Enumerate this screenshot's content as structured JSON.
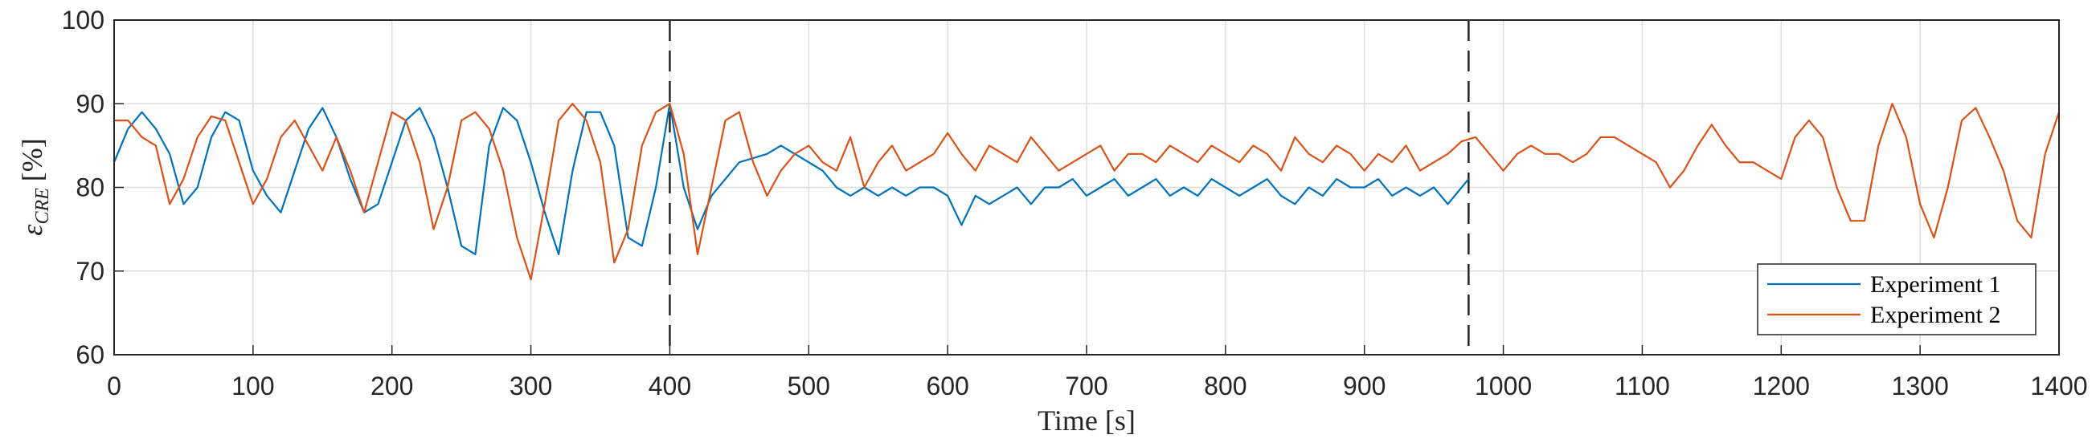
{
  "chart_data": {
    "type": "line",
    "xlabel": "Time [s]",
    "ylabel": {
      "symbol": "ε",
      "subscript": "CRE",
      "unit": "[%]"
    },
    "xlim": [
      0,
      1400
    ],
    "xticks": [
      0,
      100,
      200,
      300,
      400,
      500,
      600,
      700,
      800,
      900,
      1000,
      1100,
      1200,
      1300,
      1400
    ],
    "ylim": [
      60,
      100
    ],
    "yticks": [
      60,
      70,
      80,
      90,
      100
    ],
    "grid": true,
    "legend": "lower right",
    "vlines": [
      400,
      975
    ],
    "series": [
      {
        "name": "Experiment 1",
        "color": "#0072BD",
        "x": [
          0,
          10,
          20,
          30,
          40,
          50,
          60,
          70,
          80,
          90,
          100,
          110,
          120,
          130,
          140,
          150,
          160,
          170,
          180,
          190,
          200,
          210,
          220,
          230,
          240,
          250,
          260,
          270,
          280,
          290,
          300,
          310,
          320,
          330,
          340,
          350,
          360,
          370,
          380,
          390,
          400,
          410,
          420,
          430,
          440,
          450,
          460,
          470,
          480,
          490,
          500,
          510,
          520,
          530,
          540,
          550,
          560,
          570,
          580,
          590,
          600,
          610,
          620,
          630,
          640,
          650,
          660,
          670,
          680,
          690,
          700,
          710,
          720,
          730,
          740,
          750,
          760,
          770,
          780,
          790,
          800,
          810,
          820,
          830,
          840,
          850,
          860,
          870,
          880,
          890,
          900,
          910,
          920,
          930,
          940,
          950,
          960,
          970,
          975
        ],
        "values": [
          83,
          87,
          89,
          87,
          84,
          78,
          80,
          86,
          89,
          88,
          82,
          79,
          77,
          82,
          87,
          89.5,
          86,
          81,
          77,
          78,
          83,
          88,
          89.5,
          86,
          80,
          73,
          72,
          85,
          89.5,
          88,
          83,
          77,
          72,
          82,
          89,
          89,
          85,
          74,
          73,
          80,
          90,
          80,
          75,
          79,
          81,
          83,
          83.5,
          84,
          85,
          84,
          83,
          82,
          80,
          79,
          80,
          79,
          80,
          79,
          80,
          80,
          79,
          75.5,
          79,
          78,
          79,
          80,
          78,
          80,
          80,
          81,
          79,
          80,
          81,
          79,
          80,
          81,
          79,
          80,
          79,
          81,
          80,
          79,
          80,
          81,
          79,
          78,
          80,
          79,
          81,
          80,
          80,
          81,
          79,
          80,
          79,
          80,
          78,
          80,
          81
        ]
      },
      {
        "name": "Experiment 2",
        "color": "#D95319",
        "x": [
          0,
          10,
          20,
          30,
          40,
          50,
          60,
          70,
          80,
          90,
          100,
          110,
          120,
          130,
          140,
          150,
          160,
          170,
          180,
          190,
          200,
          210,
          220,
          230,
          240,
          250,
          260,
          270,
          280,
          290,
          300,
          310,
          320,
          330,
          340,
          350,
          360,
          370,
          380,
          390,
          400,
          410,
          420,
          430,
          440,
          450,
          460,
          470,
          480,
          490,
          500,
          510,
          520,
          530,
          540,
          550,
          560,
          570,
          580,
          590,
          600,
          610,
          620,
          630,
          640,
          650,
          660,
          670,
          680,
          690,
          700,
          710,
          720,
          730,
          740,
          750,
          760,
          770,
          780,
          790,
          800,
          810,
          820,
          830,
          840,
          850,
          860,
          870,
          880,
          890,
          900,
          910,
          920,
          930,
          940,
          950,
          960,
          970,
          980,
          990,
          1000,
          1010,
          1020,
          1030,
          1040,
          1050,
          1060,
          1070,
          1080,
          1090,
          1100,
          1110,
          1120,
          1130,
          1140,
          1150,
          1160,
          1170,
          1180,
          1190,
          1200,
          1210,
          1220,
          1230,
          1240,
          1250,
          1260,
          1270,
          1280,
          1290,
          1300,
          1310,
          1320,
          1330,
          1340,
          1350,
          1360,
          1370,
          1380,
          1390,
          1400
        ],
        "values": [
          88,
          88,
          86,
          85,
          78,
          81,
          86,
          88.5,
          88,
          83,
          78,
          81,
          86,
          88,
          85,
          82,
          86,
          82,
          77,
          83,
          89,
          88,
          83,
          75,
          80,
          88,
          89,
          87,
          82,
          74,
          69,
          78,
          88,
          90,
          88,
          83,
          71,
          75,
          85,
          89,
          90,
          84,
          72,
          80,
          88,
          89,
          83,
          79,
          82,
          84,
          85,
          83,
          82,
          86,
          80,
          83,
          85,
          82,
          83,
          84,
          86.5,
          84,
          82,
          85,
          84,
          83,
          86,
          84,
          82,
          83,
          84,
          85,
          82,
          84,
          84,
          83,
          85,
          84,
          83,
          85,
          84,
          83,
          85,
          84,
          82,
          86,
          84,
          83,
          85,
          84,
          82,
          84,
          83,
          85,
          82,
          83,
          84,
          85.5,
          86,
          84,
          82,
          84,
          85,
          84,
          84,
          83,
          84,
          86,
          86,
          85,
          84,
          83,
          80,
          82,
          85,
          87.5,
          85,
          83,
          83,
          82,
          81,
          86,
          88,
          86,
          80,
          76,
          76,
          85,
          90,
          86,
          78,
          74,
          80,
          88,
          89.5,
          86,
          82,
          76,
          74,
          84,
          89
        ]
      }
    ]
  }
}
